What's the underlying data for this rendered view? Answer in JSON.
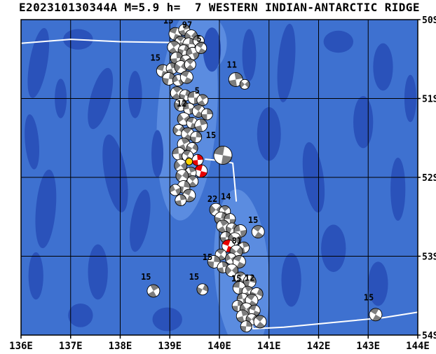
{
  "title": {
    "text": "E202310130344A M=5.9 h=  7 WESTERN INDIAN-ANTARCTIC RIDGE"
  },
  "map": {
    "lon_min": 136,
    "lon_max": 144,
    "lat_min": 50,
    "lat_max": 54,
    "lon_ticks": [
      "136E",
      "137E",
      "138E",
      "139E",
      "140E",
      "141E",
      "142E",
      "143E",
      "144E"
    ],
    "lat_ticks": [
      "50S",
      "51S",
      "52S",
      "53S",
      "54S"
    ],
    "colors": {
      "ocean": "#3e71d0",
      "bathy_dark": "#2a52ba",
      "ridge_light": "#5b8ce0",
      "grid": "#000000",
      "plate_boundary": "#ffffff",
      "beachball_gray": "#7d7d7d",
      "beachball_red": "#e60000",
      "epicenter_yellow": "#ffd400",
      "frame": "#000000"
    },
    "plate_boundaries": [
      [
        [
          136.0,
          50.3
        ],
        [
          137.0,
          50.25
        ],
        [
          138.0,
          50.28
        ],
        [
          139.0,
          50.29
        ],
        [
          139.62,
          50.33
        ]
      ],
      [
        [
          139.72,
          51.77
        ],
        [
          140.05,
          51.79
        ],
        [
          140.27,
          51.82
        ],
        [
          140.3,
          52.02
        ],
        [
          140.34,
          52.3
        ]
      ],
      [
        [
          140.55,
          53.5
        ],
        [
          140.6,
          53.72
        ],
        [
          140.68,
          53.92
        ],
        [
          141.3,
          53.9
        ],
        [
          142.3,
          53.84
        ],
        [
          143.3,
          53.78
        ],
        [
          144.0,
          53.71
        ]
      ]
    ],
    "ridge_highlight_fields": [
      "lon",
      "lat",
      "rx_deg",
      "ry_deg",
      "rot_deg"
    ],
    "ridge_highlights": [
      [
        139.35,
        51.2,
        0.6,
        1.35,
        4
      ],
      [
        140.45,
        53.2,
        0.55,
        1.05,
        -4
      ],
      [
        139.6,
        50.3,
        0.55,
        0.4,
        0
      ]
    ],
    "bathy_patch_fields": [
      "lon",
      "lat",
      "rx_deg",
      "ry_deg",
      "rot_deg"
    ],
    "bathy_patches": [
      [
        136.35,
        50.55,
        0.18,
        0.45,
        10
      ],
      [
        136.22,
        51.55,
        0.14,
        0.35,
        -5
      ],
      [
        136.5,
        52.4,
        0.2,
        0.5,
        5
      ],
      [
        136.3,
        53.25,
        0.15,
        0.3,
        0
      ],
      [
        137.15,
        50.25,
        0.3,
        0.13,
        0
      ],
      [
        137.6,
        51.0,
        0.2,
        0.4,
        15
      ],
      [
        137.9,
        51.95,
        0.22,
        0.5,
        -10
      ],
      [
        137.55,
        53.2,
        0.2,
        0.35,
        0
      ],
      [
        138.4,
        52.55,
        0.18,
        0.4,
        10
      ],
      [
        138.3,
        50.95,
        0.14,
        0.3,
        0
      ],
      [
        138.75,
        51.7,
        0.12,
        0.3,
        0
      ],
      [
        139.85,
        50.38,
        0.18,
        0.28,
        0
      ],
      [
        140.6,
        50.45,
        0.14,
        0.33,
        0
      ],
      [
        141.35,
        50.55,
        0.17,
        0.5,
        5
      ],
      [
        142.4,
        50.28,
        0.3,
        0.14,
        0
      ],
      [
        143.3,
        50.6,
        0.2,
        0.3,
        0
      ],
      [
        141.0,
        51.45,
        0.24,
        0.34,
        0
      ],
      [
        141.9,
        52.0,
        0.2,
        0.45,
        -8
      ],
      [
        142.9,
        51.3,
        0.2,
        0.33,
        0
      ],
      [
        143.6,
        52.15,
        0.15,
        0.4,
        0
      ],
      [
        142.3,
        52.9,
        0.25,
        0.3,
        0
      ],
      [
        141.45,
        53.3,
        0.2,
        0.34,
        0
      ],
      [
        143.2,
        53.35,
        0.2,
        0.28,
        0
      ],
      [
        138.95,
        53.8,
        0.3,
        0.15,
        0
      ],
      [
        137.2,
        53.75,
        0.25,
        0.15,
        0
      ],
      [
        136.8,
        51.0,
        0.12,
        0.25,
        0
      ],
      [
        143.85,
        51.0,
        0.12,
        0.3,
        0
      ]
    ],
    "beachball_fields": [
      "lon",
      "lat",
      "radius_px",
      "rotation_deg",
      "color"
    ],
    "beachballs": [
      [
        139.11,
        50.18,
        9,
        20,
        "gray"
      ],
      [
        139.29,
        50.13,
        8,
        75,
        "gray"
      ],
      [
        139.43,
        50.21,
        9,
        130,
        "gray"
      ],
      [
        139.22,
        50.28,
        8,
        40,
        "gray"
      ],
      [
        139.39,
        50.31,
        9,
        95,
        "gray"
      ],
      [
        139.58,
        50.27,
        8,
        10,
        "gray"
      ],
      [
        139.08,
        50.35,
        9,
        55,
        "gray"
      ],
      [
        139.28,
        50.39,
        8,
        110,
        "gray"
      ],
      [
        139.46,
        50.43,
        9,
        160,
        "gray"
      ],
      [
        139.63,
        50.36,
        8,
        30,
        "gray"
      ],
      [
        139.14,
        50.49,
        9,
        85,
        "gray"
      ],
      [
        139.32,
        50.52,
        8,
        140,
        "gray"
      ],
      [
        138.86,
        50.65,
        9,
        15,
        "gray"
      ],
      [
        139.04,
        50.62,
        8,
        70,
        "gray"
      ],
      [
        139.22,
        50.6,
        9,
        125,
        "gray"
      ],
      [
        139.41,
        50.57,
        8,
        45,
        "gray"
      ],
      [
        138.98,
        50.75,
        9,
        100,
        "gray"
      ],
      [
        139.17,
        50.77,
        8,
        155,
        "gray"
      ],
      [
        139.34,
        50.73,
        9,
        25,
        "gray"
      ],
      [
        140.33,
        50.76,
        10,
        80,
        "gray"
      ],
      [
        140.51,
        50.82,
        7,
        135,
        "gray"
      ],
      [
        139.14,
        50.93,
        9,
        50,
        "gray"
      ],
      [
        139.31,
        50.96,
        8,
        105,
        "gray"
      ],
      [
        139.49,
        50.99,
        9,
        0,
        "gray"
      ],
      [
        139.66,
        51.02,
        8,
        60,
        "gray"
      ],
      [
        139.22,
        51.08,
        9,
        115,
        "gray"
      ],
      [
        139.39,
        51.13,
        8,
        170,
        "gray"
      ],
      [
        139.58,
        51.16,
        9,
        35,
        "gray"
      ],
      [
        139.75,
        51.2,
        8,
        90,
        "gray"
      ],
      [
        139.28,
        51.26,
        9,
        145,
        "gray"
      ],
      [
        139.45,
        51.31,
        8,
        20,
        "gray"
      ],
      [
        139.63,
        51.34,
        9,
        75,
        "gray"
      ],
      [
        139.18,
        51.4,
        8,
        130,
        "gray"
      ],
      [
        139.36,
        51.45,
        9,
        40,
        "gray"
      ],
      [
        139.53,
        51.49,
        8,
        95,
        "gray"
      ],
      [
        140.07,
        51.72,
        13,
        10,
        "gray"
      ],
      [
        139.28,
        51.58,
        9,
        65,
        "gray"
      ],
      [
        139.45,
        51.63,
        8,
        120,
        "gray"
      ],
      [
        139.18,
        51.7,
        9,
        175,
        "gray"
      ],
      [
        139.36,
        51.73,
        8,
        30,
        "gray"
      ],
      [
        139.56,
        51.78,
        8,
        85,
        "red"
      ],
      [
        139.22,
        51.85,
        9,
        140,
        "gray"
      ],
      [
        139.63,
        51.92,
        9,
        15,
        "red"
      ],
      [
        139.42,
        51.94,
        8,
        70,
        "gray"
      ],
      [
        139.25,
        51.98,
        9,
        125,
        "gray"
      ],
      [
        139.46,
        52.05,
        8,
        45,
        "gray"
      ],
      [
        139.28,
        52.12,
        9,
        100,
        "gray"
      ],
      [
        139.11,
        52.16,
        8,
        155,
        "gray"
      ],
      [
        139.39,
        52.23,
        9,
        25,
        "gray"
      ],
      [
        139.22,
        52.29,
        8,
        80,
        "gray"
      ],
      [
        139.93,
        52.41,
        9,
        135,
        "gray"
      ],
      [
        140.11,
        52.43,
        8,
        50,
        "gray"
      ],
      [
        140.03,
        52.52,
        9,
        105,
        "gray"
      ],
      [
        140.21,
        52.53,
        8,
        0,
        "gray"
      ],
      [
        140.07,
        52.62,
        9,
        60,
        "gray"
      ],
      [
        140.25,
        52.65,
        8,
        115,
        "gray"
      ],
      [
        140.42,
        52.68,
        9,
        170,
        "gray"
      ],
      [
        140.78,
        52.69,
        9,
        35,
        "gray"
      ],
      [
        140.13,
        52.76,
        8,
        90,
        "gray"
      ],
      [
        140.31,
        52.78,
        9,
        145,
        "gray"
      ],
      [
        140.18,
        52.87,
        9,
        20,
        "red"
      ],
      [
        140.49,
        52.89,
        8,
        75,
        "gray"
      ],
      [
        140.34,
        52.94,
        9,
        130,
        "gray"
      ],
      [
        140.03,
        52.98,
        8,
        40,
        "gray"
      ],
      [
        139.89,
        53.07,
        9,
        95,
        "gray"
      ],
      [
        140.23,
        53.03,
        8,
        150,
        "gray"
      ],
      [
        140.4,
        53.07,
        9,
        25,
        "gray"
      ],
      [
        140.07,
        53.14,
        8,
        80,
        "gray"
      ],
      [
        140.25,
        53.18,
        9,
        135,
        "gray"
      ],
      [
        140.42,
        53.27,
        8,
        50,
        "gray"
      ],
      [
        140.61,
        53.32,
        9,
        105,
        "gray"
      ],
      [
        140.4,
        53.4,
        9,
        5,
        "gray"
      ],
      [
        140.57,
        53.45,
        8,
        60,
        "gray"
      ],
      [
        140.75,
        53.48,
        9,
        115,
        "gray"
      ],
      [
        140.47,
        53.54,
        8,
        170,
        "gray"
      ],
      [
        140.65,
        53.56,
        9,
        35,
        "gray"
      ],
      [
        140.37,
        53.63,
        8,
        90,
        "gray"
      ],
      [
        140.54,
        53.67,
        9,
        145,
        "gray"
      ],
      [
        140.71,
        53.69,
        8,
        20,
        "gray"
      ],
      [
        140.47,
        53.76,
        9,
        75,
        "gray"
      ],
      [
        140.65,
        53.8,
        8,
        130,
        "gray"
      ],
      [
        140.82,
        53.83,
        9,
        40,
        "gray"
      ],
      [
        140.54,
        53.89,
        8,
        95,
        "gray"
      ],
      [
        138.67,
        53.44,
        9,
        60,
        "gray"
      ],
      [
        139.66,
        53.42,
        8,
        115,
        "gray"
      ],
      [
        143.15,
        53.74,
        9,
        30,
        "gray"
      ],
      [
        139.39,
        51.8,
        5,
        0,
        "yellow"
      ]
    ],
    "depth_label_fields": [
      "lon",
      "lat",
      "text"
    ],
    "depth_labels": [
      [
        138.97,
        50.05,
        "15"
      ],
      [
        139.35,
        50.1,
        "97"
      ],
      [
        139.59,
        50.28,
        "5"
      ],
      [
        138.71,
        50.52,
        "15"
      ],
      [
        140.25,
        50.61,
        "11"
      ],
      [
        139.55,
        50.94,
        "5"
      ],
      [
        139.24,
        51.1,
        "12"
      ],
      [
        139.83,
        51.5,
        "15"
      ],
      [
        139.86,
        52.31,
        "22"
      ],
      [
        140.13,
        52.28,
        "14"
      ],
      [
        140.68,
        52.58,
        "15"
      ],
      [
        140.35,
        52.84,
        "81"
      ],
      [
        139.76,
        53.05,
        "15"
      ],
      [
        138.52,
        53.3,
        "15"
      ],
      [
        139.49,
        53.3,
        "15"
      ],
      [
        140.34,
        53.32,
        "15"
      ],
      [
        140.61,
        53.31,
        "12"
      ],
      [
        143.01,
        53.56,
        "15"
      ]
    ]
  }
}
